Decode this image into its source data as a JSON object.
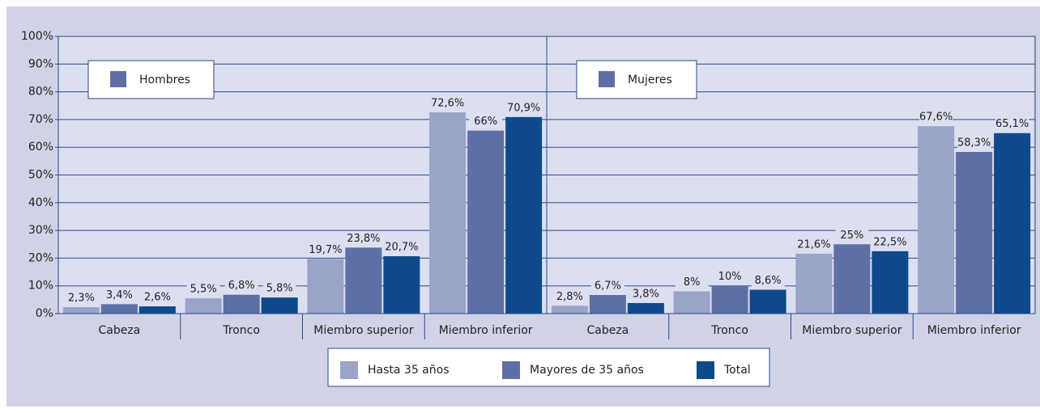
{
  "chart_data": [
    {
      "type": "bar",
      "title": "Hombres",
      "categories": [
        "Cabeza",
        "Tronco",
        "Miembro superior",
        "Miembro inferior"
      ],
      "series": [
        {
          "name": "Hasta 35 años",
          "color": "#9aa3c8",
          "values": [
            2.3,
            5.5,
            19.7,
            72.6
          ],
          "value_labels": [
            "2,3%",
            "5,5%",
            "19,7%",
            "72,6%"
          ]
        },
        {
          "name": "Mayores de 35 años",
          "color": "#5f6fa6",
          "values": [
            3.4,
            6.8,
            23.8,
            66
          ],
          "value_labels": [
            "3,4%",
            "6,8%",
            "23,8%",
            "66%"
          ]
        },
        {
          "name": "Total",
          "color": "#0e4a8a",
          "values": [
            2.6,
            5.8,
            20.7,
            70.9
          ],
          "value_labels": [
            "2,6%",
            "5,8%",
            "20,7%",
            "70,9%"
          ]
        }
      ],
      "ylim": [
        0,
        100
      ],
      "yticks": [
        {
          "value": 0,
          "label": "0%"
        },
        {
          "value": 10,
          "label": "10%"
        },
        {
          "value": 20,
          "label": "20%"
        },
        {
          "value": 30,
          "label": "30%"
        },
        {
          "value": 40,
          "label": "40%"
        },
        {
          "value": 50,
          "label": "50%"
        },
        {
          "value": 60,
          "label": "60%"
        },
        {
          "value": 70,
          "label": "70%"
        },
        {
          "value": 80,
          "label": "80%"
        },
        {
          "value": 90,
          "label": "90%"
        },
        {
          "value": 100,
          "label": "100%"
        }
      ],
      "grid": true
    },
    {
      "type": "bar",
      "title": "Mujeres",
      "categories": [
        "Cabeza",
        "Tronco",
        "Miembro superior",
        "Miembro inferior"
      ],
      "series": [
        {
          "name": "Hasta 35 años",
          "color": "#9aa3c8",
          "values": [
            2.8,
            8,
            21.6,
            67.6
          ],
          "value_labels": [
            "2,8%",
            "8%",
            "21,6%",
            "67,6%"
          ]
        },
        {
          "name": "Mayores de 35 años",
          "color": "#5f6fa6",
          "values": [
            6.7,
            10,
            25,
            58.3
          ],
          "value_labels": [
            "6,7%",
            "10%",
            "25%",
            "58,3%"
          ]
        },
        {
          "name": "Total",
          "color": "#0e4a8a",
          "values": [
            3.8,
            8.6,
            22.5,
            65.1
          ],
          "value_labels": [
            "3,8%",
            "8,6%",
            "22,5%",
            "65,1%"
          ]
        }
      ],
      "ylim": [
        0,
        100
      ],
      "yticks": [
        {
          "value": 0,
          "label": "0%"
        },
        {
          "value": 10,
          "label": "10%"
        },
        {
          "value": 20,
          "label": "20%"
        },
        {
          "value": 30,
          "label": "30%"
        },
        {
          "value": 40,
          "label": "40%"
        },
        {
          "value": 50,
          "label": "50%"
        },
        {
          "value": 60,
          "label": "60%"
        },
        {
          "value": 70,
          "label": "70%"
        },
        {
          "value": 80,
          "label": "80%"
        },
        {
          "value": 90,
          "label": "90%"
        },
        {
          "value": 100,
          "label": "100%"
        }
      ],
      "grid": true
    }
  ]
}
